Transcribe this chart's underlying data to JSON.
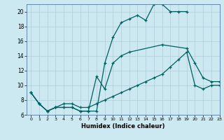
{
  "xlabel": "Humidex (Indice chaleur)",
  "xlim": [
    -0.5,
    23
  ],
  "ylim": [
    6,
    21
  ],
  "xticks": [
    0,
    1,
    2,
    3,
    4,
    5,
    6,
    7,
    8,
    9,
    10,
    11,
    12,
    13,
    14,
    15,
    16,
    17,
    18,
    19,
    20,
    21,
    22,
    23
  ],
  "yticks": [
    6,
    8,
    10,
    12,
    14,
    16,
    18,
    20
  ],
  "bg_color": "#cce8f0",
  "grid_color": "#b0ccd8",
  "line_color": "#006060",
  "line1_x": [
    0,
    1,
    2,
    3,
    4,
    5,
    6,
    7,
    8,
    9,
    10,
    11,
    12,
    13,
    14,
    15,
    16,
    17,
    18,
    19,
    20,
    21,
    22,
    23
  ],
  "line1_y": [
    9,
    7.5,
    6.5,
    7,
    7,
    7,
    6.5,
    6.5,
    6.5,
    13,
    16.5,
    18.5,
    19,
    19.5,
    18.8,
    21,
    21,
    20,
    20,
    20,
    null,
    null,
    null,
    null
  ],
  "line2_x": [
    0,
    1,
    2,
    3,
    4,
    5,
    6,
    7,
    8,
    9,
    10,
    11,
    12,
    16,
    19,
    20,
    21,
    22,
    23
  ],
  "line2_y": [
    9,
    7.5,
    6.5,
    7,
    7,
    7,
    6.5,
    6.5,
    11.2,
    9.5,
    13,
    14,
    14.5,
    15.5,
    15,
    13,
    11,
    10.5,
    10.5
  ],
  "line3_x": [
    0,
    1,
    2,
    3,
    4,
    5,
    6,
    7,
    8,
    9,
    10,
    11,
    12,
    13,
    14,
    15,
    16,
    17,
    18,
    19,
    20,
    21,
    22,
    23
  ],
  "line3_y": [
    9,
    7.5,
    6.5,
    7,
    7.5,
    7.5,
    7,
    7,
    7.5,
    8,
    8.5,
    9,
    9.5,
    10,
    10.5,
    11,
    11.5,
    12.5,
    13.5,
    14.5,
    10,
    9.5,
    10,
    10
  ]
}
